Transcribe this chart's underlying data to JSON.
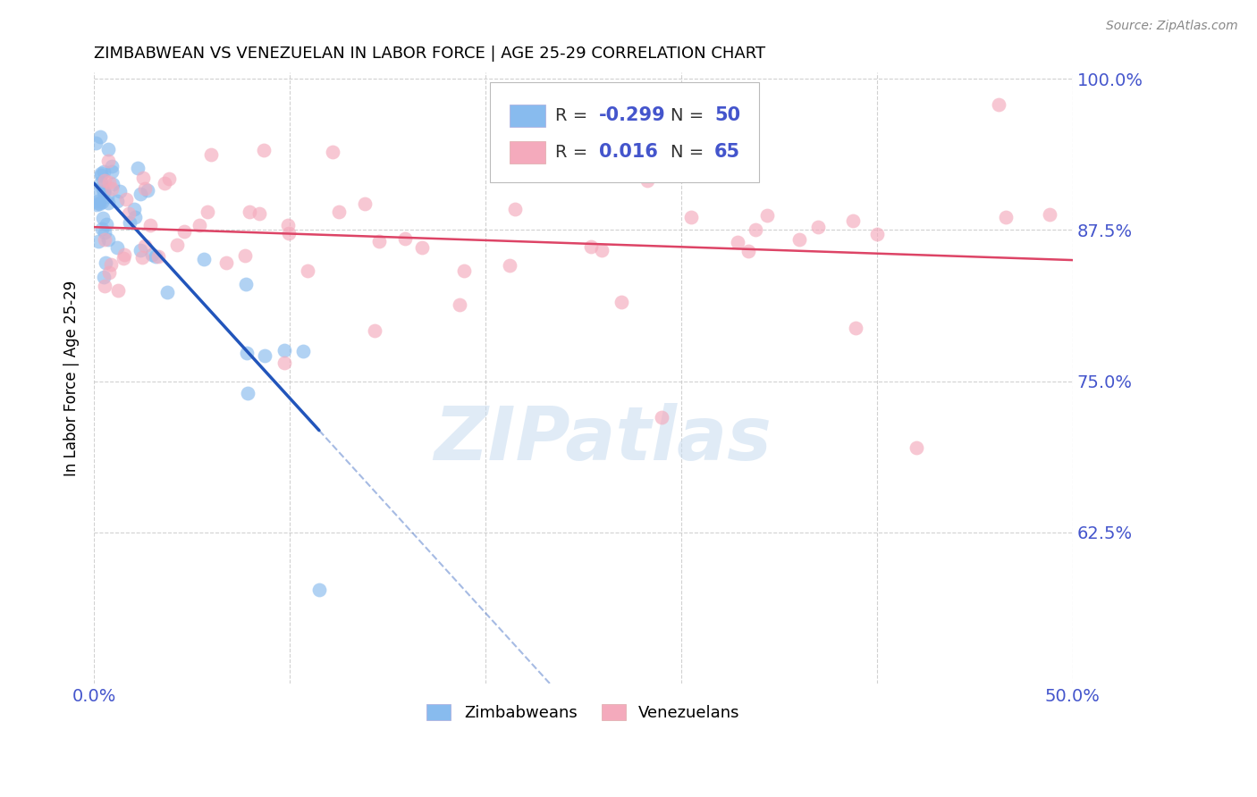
{
  "title": "ZIMBABWEAN VS VENEZUELAN IN LABOR FORCE | AGE 25-29 CORRELATION CHART",
  "source": "Source: ZipAtlas.com",
  "ylabel": "In Labor Force | Age 25-29",
  "watermark": "ZIPatlas",
  "legend_blue_label": "Zimbabweans",
  "legend_pink_label": "Venezuelans",
  "blue_color": "#88BBEE",
  "pink_color": "#F4AABC",
  "trend_blue_color": "#2255BB",
  "trend_pink_color": "#DD4466",
  "axis_tick_color": "#4455CC",
  "text_color": "#333333",
  "background_color": "#FFFFFF",
  "grid_color": "#CCCCCC",
  "xmin": 0.0,
  "xmax": 0.5,
  "ymin": 0.5,
  "ymax": 1.005,
  "yticks": [
    1.0,
    0.875,
    0.75,
    0.625
  ],
  "xtick_show": [
    0.0,
    0.5
  ],
  "blue_R": -0.299,
  "blue_N": 50,
  "pink_R": 0.016,
  "pink_N": 65
}
